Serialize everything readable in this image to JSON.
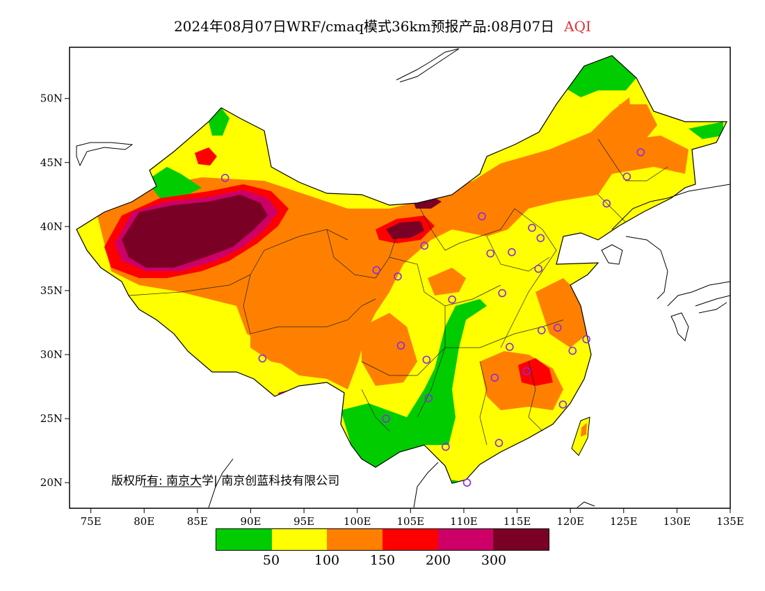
{
  "title": {
    "main": "2024年08月07日WRF/cmaq模式36km预报产品:08月07日",
    "variable": "AQI",
    "variable_color": "#e0303a"
  },
  "axes": {
    "lat_labels": [
      "50N",
      "45N",
      "40N",
      "35N",
      "30N",
      "25N",
      "20N"
    ],
    "lat_values": [
      50,
      45,
      40,
      35,
      30,
      25,
      20
    ],
    "lon_labels": [
      "75E",
      "80E",
      "85E",
      "90E",
      "95E",
      "100E",
      "105E",
      "110E",
      "115E",
      "120E",
      "125E",
      "130E",
      "135E"
    ],
    "lon_values": [
      75,
      80,
      85,
      90,
      95,
      100,
      105,
      110,
      115,
      120,
      125,
      130,
      135
    ],
    "lon_range": [
      73,
      135
    ],
    "lat_range": [
      18,
      54
    ]
  },
  "copyright": "版权所有: 南京大学| 南京创蓝科技有限公司",
  "legend": {
    "colors": [
      "#00cc00",
      "#ffff00",
      "#ff8000",
      "#ff0000",
      "#cc0066",
      "#7a0026"
    ],
    "labels": [
      "50",
      "100",
      "150",
      "200",
      "300"
    ],
    "thresholds": [
      50,
      100,
      150,
      200,
      300
    ]
  },
  "stations": [
    [
      87.6,
      43.8
    ],
    [
      91.1,
      29.7
    ],
    [
      101.8,
      36.6
    ],
    [
      103.8,
      36.1
    ],
    [
      106.3,
      38.5
    ],
    [
      104.1,
      30.7
    ],
    [
      106.5,
      29.6
    ],
    [
      106.7,
      26.6
    ],
    [
      102.7,
      25.0
    ],
    [
      108.3,
      22.8
    ],
    [
      113.3,
      23.1
    ],
    [
      110.3,
      20.0
    ],
    [
      112.9,
      28.2
    ],
    [
      114.3,
      30.6
    ],
    [
      115.9,
      28.7
    ],
    [
      117.3,
      31.9
    ],
    [
      118.8,
      32.1
    ],
    [
      120.2,
      30.3
    ],
    [
      121.5,
      31.2
    ],
    [
      119.3,
      26.1
    ],
    [
      108.9,
      34.3
    ],
    [
      113.6,
      34.8
    ],
    [
      112.5,
      37.9
    ],
    [
      114.5,
      38.0
    ],
    [
      117.0,
      36.7
    ],
    [
      116.4,
      39.9
    ],
    [
      117.2,
      39.1
    ],
    [
      111.7,
      40.8
    ],
    [
      123.4,
      41.8
    ],
    [
      125.3,
      43.9
    ],
    [
      126.6,
      45.8
    ]
  ]
}
